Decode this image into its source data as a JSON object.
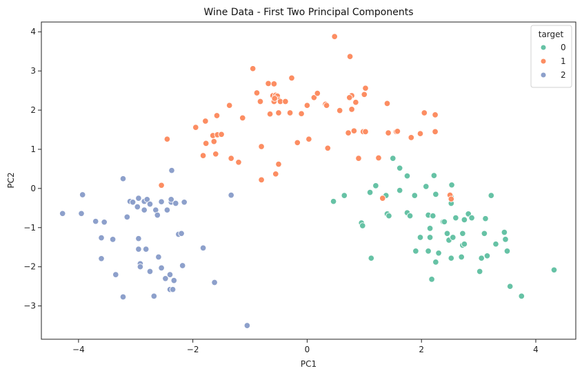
{
  "chart_data": {
    "type": "scatter",
    "title": "Wine Data - First Two Principal Components",
    "xlabel": "PC1",
    "ylabel": "PC2",
    "xlim": [
      -4.65,
      4.7
    ],
    "ylim": [
      -3.85,
      4.25
    ],
    "xticks": [
      -4,
      -2,
      0,
      2,
      4
    ],
    "yticks": [
      -3,
      -2,
      -1,
      0,
      1,
      2,
      3,
      4
    ],
    "grid": false,
    "legend": {
      "title": "target",
      "placement": "top-right"
    },
    "series": [
      {
        "name": "0",
        "color": "#66c2a5",
        "points": [
          [
            0.46,
            -0.33
          ],
          [
            0.65,
            -0.18
          ],
          [
            0.95,
            -0.88
          ],
          [
            0.97,
            -0.95
          ],
          [
            1.1,
            -0.1
          ],
          [
            1.12,
            -1.78
          ],
          [
            1.2,
            0.07
          ],
          [
            1.38,
            -0.18
          ],
          [
            1.4,
            -0.65
          ],
          [
            1.43,
            -0.7
          ],
          [
            1.5,
            0.77
          ],
          [
            1.62,
            0.52
          ],
          [
            1.62,
            -0.05
          ],
          [
            1.75,
            0.32
          ],
          [
            1.75,
            -0.62
          ],
          [
            1.8,
            -0.7
          ],
          [
            1.9,
            -1.6
          ],
          [
            1.88,
            -0.18
          ],
          [
            1.98,
            -1.25
          ],
          [
            2.08,
            0.05
          ],
          [
            2.12,
            -1.6
          ],
          [
            2.12,
            -0.68
          ],
          [
            2.15,
            -1.02
          ],
          [
            2.15,
            -1.25
          ],
          [
            2.18,
            -2.32
          ],
          [
            2.2,
            -0.7
          ],
          [
            2.22,
            0.33
          ],
          [
            2.25,
            -1.88
          ],
          [
            2.25,
            -0.15
          ],
          [
            2.3,
            -1.65
          ],
          [
            2.38,
            -0.85
          ],
          [
            2.4,
            -0.85
          ],
          [
            2.45,
            -1.15
          ],
          [
            2.48,
            -1.32
          ],
          [
            2.52,
            -1.78
          ],
          [
            2.52,
            -0.22
          ],
          [
            2.52,
            -0.38
          ],
          [
            2.55,
            -1.25
          ],
          [
            2.53,
            0.09
          ],
          [
            2.6,
            -0.75
          ],
          [
            2.7,
            -1.75
          ],
          [
            2.72,
            -1.45
          ],
          [
            2.72,
            -1.15
          ],
          [
            2.75,
            -1.42
          ],
          [
            2.75,
            -0.8
          ],
          [
            2.82,
            -0.65
          ],
          [
            2.88,
            -0.75
          ],
          [
            3.02,
            -2.12
          ],
          [
            3.05,
            -1.78
          ],
          [
            3.1,
            -1.15
          ],
          [
            3.12,
            -0.77
          ],
          [
            3.15,
            -1.72
          ],
          [
            3.22,
            -0.18
          ],
          [
            3.3,
            -1.42
          ],
          [
            3.45,
            -1.12
          ],
          [
            3.47,
            -1.3
          ],
          [
            3.5,
            -1.6
          ],
          [
            3.55,
            -2.5
          ],
          [
            3.75,
            -2.75
          ],
          [
            4.32,
            -2.08
          ]
        ]
      },
      {
        "name": "1",
        "color": "#fc8d62",
        "points": [
          [
            0.48,
            3.88
          ],
          [
            0.75,
            3.37
          ],
          [
            -0.95,
            3.06
          ],
          [
            -0.27,
            2.82
          ],
          [
            -0.68,
            2.68
          ],
          [
            -0.58,
            2.67
          ],
          [
            -0.88,
            2.44
          ],
          [
            -0.6,
            2.37
          ],
          [
            -0.55,
            2.38
          ],
          [
            -0.52,
            2.36
          ],
          [
            -0.5,
            2.26
          ],
          [
            -0.58,
            2.22
          ],
          [
            -0.47,
            2.22
          ],
          [
            -0.82,
            2.22
          ],
          [
            -0.38,
            2.22
          ],
          [
            -0.57,
            2.3
          ],
          [
            -0.65,
            1.9
          ],
          [
            -0.5,
            1.93
          ],
          [
            -0.3,
            1.93
          ],
          [
            -0.1,
            1.91
          ],
          [
            0.0,
            2.12
          ],
          [
            0.12,
            2.32
          ],
          [
            0.18,
            2.43
          ],
          [
            0.32,
            2.15
          ],
          [
            0.34,
            2.12
          ],
          [
            0.57,
            1.99
          ],
          [
            0.78,
            2.37
          ],
          [
            0.74,
            2.32
          ],
          [
            0.78,
            2.02
          ],
          [
            0.85,
            2.2
          ],
          [
            1.0,
            2.4
          ],
          [
            1.02,
            2.56
          ],
          [
            0.72,
            1.42
          ],
          [
            0.82,
            1.47
          ],
          [
            0.98,
            1.45
          ],
          [
            1.02,
            1.45
          ],
          [
            1.4,
            2.17
          ],
          [
            1.42,
            1.42
          ],
          [
            1.56,
            1.45
          ],
          [
            1.58,
            1.46
          ],
          [
            1.82,
            1.3
          ],
          [
            1.98,
            1.4
          ],
          [
            2.05,
            1.93
          ],
          [
            2.24,
            1.88
          ],
          [
            2.24,
            1.45
          ],
          [
            2.5,
            -0.17
          ],
          [
            2.52,
            -0.27
          ],
          [
            1.32,
            -0.25
          ],
          [
            1.25,
            0.78
          ],
          [
            0.9,
            0.77
          ],
          [
            0.36,
            1.03
          ],
          [
            0.03,
            1.26
          ],
          [
            -0.17,
            1.17
          ],
          [
            -0.8,
            1.07
          ],
          [
            -0.8,
            0.22
          ],
          [
            -0.5,
            0.62
          ],
          [
            -0.55,
            0.37
          ],
          [
            -1.33,
            0.77
          ],
          [
            -1.2,
            0.67
          ],
          [
            -1.6,
            0.88
          ],
          [
            -1.82,
            0.84
          ],
          [
            -1.77,
            1.15
          ],
          [
            -1.63,
            1.2
          ],
          [
            -1.65,
            1.35
          ],
          [
            -1.57,
            1.37
          ],
          [
            -1.5,
            1.38
          ],
          [
            -1.78,
            1.72
          ],
          [
            -1.95,
            1.56
          ],
          [
            -1.58,
            1.86
          ],
          [
            -1.36,
            2.12
          ],
          [
            -1.13,
            1.8
          ],
          [
            -2.45,
            1.26
          ],
          [
            -2.55,
            0.08
          ]
        ]
      },
      {
        "name": "2",
        "color": "#8da0cb",
        "points": [
          [
            -4.28,
            -0.64
          ],
          [
            -3.95,
            -0.64
          ],
          [
            -3.93,
            -0.16
          ],
          [
            -3.7,
            -0.84
          ],
          [
            -3.55,
            -0.86
          ],
          [
            -3.6,
            -1.26
          ],
          [
            -3.6,
            -1.79
          ],
          [
            -3.4,
            -1.3
          ],
          [
            -3.35,
            -2.2
          ],
          [
            -3.22,
            0.25
          ],
          [
            -3.15,
            -0.73
          ],
          [
            -3.1,
            -0.33
          ],
          [
            -3.05,
            -0.35
          ],
          [
            -2.97,
            -0.47
          ],
          [
            -2.95,
            -0.25
          ],
          [
            -2.85,
            -0.33
          ],
          [
            -2.85,
            -0.55
          ],
          [
            -2.8,
            -0.28
          ],
          [
            -2.75,
            -0.4
          ],
          [
            -2.65,
            -0.55
          ],
          [
            -2.62,
            -0.68
          ],
          [
            -2.55,
            -0.34
          ],
          [
            -2.45,
            -0.55
          ],
          [
            -2.38,
            -0.35
          ],
          [
            -2.38,
            -0.28
          ],
          [
            -2.3,
            -0.38
          ],
          [
            -2.15,
            -0.35
          ],
          [
            -2.37,
            0.46
          ],
          [
            -1.33,
            -0.17
          ],
          [
            -2.95,
            -1.28
          ],
          [
            -2.95,
            -1.55
          ],
          [
            -2.92,
            -1.92
          ],
          [
            -2.92,
            -2.0
          ],
          [
            -2.82,
            -1.55
          ],
          [
            -2.75,
            -2.12
          ],
          [
            -2.6,
            -1.75
          ],
          [
            -2.55,
            -2.03
          ],
          [
            -2.48,
            -2.3
          ],
          [
            -2.4,
            -2.2
          ],
          [
            -2.33,
            -2.35
          ],
          [
            -2.4,
            -2.58
          ],
          [
            -2.35,
            -2.58
          ],
          [
            -2.25,
            -1.17
          ],
          [
            -2.2,
            -1.15
          ],
          [
            -2.18,
            -1.97
          ],
          [
            -2.68,
            -2.75
          ],
          [
            -3.22,
            -2.77
          ],
          [
            -1.82,
            -1.52
          ],
          [
            -1.62,
            -2.4
          ],
          [
            -1.05,
            -3.5
          ]
        ]
      }
    ]
  }
}
